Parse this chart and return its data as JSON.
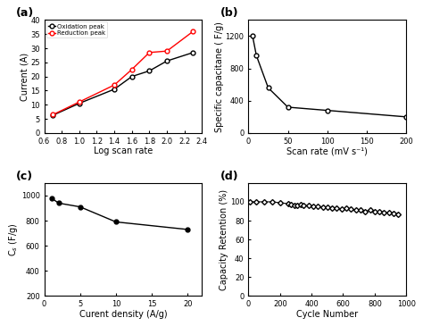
{
  "panel_a": {
    "title": "(a)",
    "xlabel": "Log scan rate",
    "ylabel": "Current (A)",
    "oxidation_x": [
      0.7,
      1.0,
      1.4,
      1.6,
      1.8,
      2.0,
      2.3
    ],
    "oxidation_y": [
      6.3,
      10.5,
      15.5,
      20.0,
      22.0,
      25.5,
      28.5
    ],
    "reduction_x": [
      0.7,
      1.0,
      1.4,
      1.6,
      1.8,
      2.0,
      2.3
    ],
    "reduction_y": [
      6.5,
      11.0,
      17.0,
      22.5,
      28.5,
      29.0,
      36.0
    ],
    "xlim": [
      0.6,
      2.4
    ],
    "ylim": [
      0,
      40
    ],
    "xticks": [
      0.6,
      0.8,
      1.0,
      1.2,
      1.4,
      1.6,
      1.8,
      2.0,
      2.2,
      2.4
    ],
    "yticks": [
      0,
      5,
      10,
      15,
      20,
      25,
      30,
      35,
      40
    ],
    "legend_oxidation": "Oxidation peak",
    "legend_reduction": "Reduction peak"
  },
  "panel_b": {
    "title": "(b)",
    "xlabel": "Scan rate (mV s⁻¹)",
    "ylabel": "Specific capacitane ( F/g)",
    "x": [
      5,
      10,
      25,
      50,
      100,
      200
    ],
    "y": [
      1210,
      960,
      560,
      320,
      280,
      200
    ],
    "xlim": [
      0,
      200
    ],
    "ylim": [
      0,
      1400
    ],
    "xticks": [
      0,
      50,
      100,
      150,
      200
    ],
    "yticks": [
      0,
      400,
      800,
      1200
    ]
  },
  "panel_c": {
    "title": "(c)",
    "xlabel": "Curent density (A/g)",
    "ylabel": "C$_s$ (F/g)",
    "x": [
      1,
      2,
      5,
      10,
      20
    ],
    "y": [
      980,
      940,
      910,
      790,
      730
    ],
    "xlim": [
      0,
      22
    ],
    "ylim": [
      200,
      1100
    ],
    "xticks": [
      0,
      5,
      10,
      15,
      20
    ],
    "yticks": [
      200,
      400,
      600,
      800,
      1000
    ]
  },
  "panel_d": {
    "title": "(d)",
    "xlabel": "Cycle Number",
    "ylabel": "Capacity Retention (%)",
    "x": [
      10,
      50,
      100,
      150,
      200,
      250,
      270,
      290,
      310,
      330,
      350,
      380,
      410,
      440,
      470,
      500,
      530,
      560,
      590,
      620,
      650,
      680,
      710,
      740,
      770,
      800,
      830,
      860,
      890,
      920,
      950
    ],
    "y": [
      100,
      100,
      100,
      100,
      99,
      98,
      97,
      96,
      96,
      97,
      96,
      96,
      95,
      95,
      94,
      94,
      93,
      93,
      92,
      93,
      92,
      91,
      91,
      90,
      91,
      90,
      90,
      89,
      89,
      88,
      87
    ],
    "xlim": [
      0,
      1000
    ],
    "ylim": [
      0,
      120
    ],
    "xticks": [
      0,
      200,
      400,
      600,
      800,
      1000
    ],
    "yticks": [
      0,
      20,
      40,
      60,
      80,
      100
    ]
  },
  "font_size": 7,
  "tick_fontsize": 6,
  "label_fontsize": 7
}
